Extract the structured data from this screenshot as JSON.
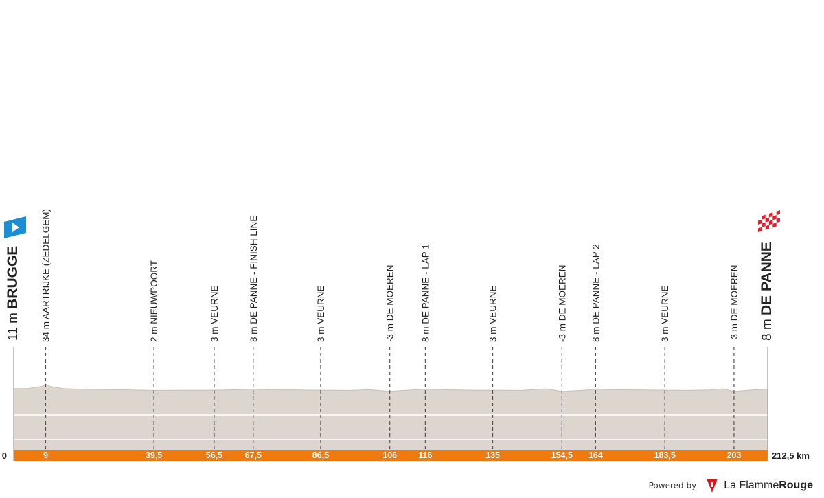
{
  "chart_data": {
    "type": "area",
    "title": "",
    "distance_unit": "km",
    "start_km_label": "0",
    "total_km": 212.5,
    "total_km_label": "212,5 km",
    "colors": {
      "profile_fill": "#ddd6ce",
      "profile_top": "#c8c0b7",
      "distance_bar": "#ee7a12",
      "start_flag": "#1b8fd3",
      "finish_flag": "#e3202a",
      "label_text": "#222222",
      "km_text": "#ffffff"
    },
    "elevation_profile": {
      "x": [
        0,
        4,
        8,
        9,
        10,
        14,
        20,
        27,
        40,
        50,
        56.5,
        62,
        67.5,
        72,
        80,
        86.5,
        95,
        100,
        106,
        110,
        116,
        122,
        130,
        135,
        143,
        150,
        154.5,
        160,
        164,
        170,
        178,
        183.5,
        190,
        196,
        200,
        203,
        208,
        212.5
      ],
      "y": [
        11,
        11,
        22,
        34,
        22,
        11,
        7,
        6,
        2,
        3,
        3,
        5,
        8,
        5,
        4,
        3,
        2,
        6,
        -3,
        2,
        8,
        5,
        3,
        3,
        2,
        10,
        -3,
        2,
        8,
        5,
        4,
        3,
        2,
        4,
        10,
        -3,
        4,
        8
      ]
    },
    "waypoints": [
      {
        "km": 0,
        "km_label": "",
        "alt_label": "11 m",
        "name": "BRUGGE",
        "kind": "start"
      },
      {
        "km": 9,
        "km_label": "9",
        "alt_label": "34 m",
        "name": "AARTRIJKE (ZEDELGEM)",
        "kind": "point"
      },
      {
        "km": 39.5,
        "km_label": "39,5",
        "alt_label": "2 m",
        "name": "NIEUWPOORT",
        "kind": "point"
      },
      {
        "km": 56.5,
        "km_label": "56,5",
        "alt_label": "3 m",
        "name": "VEURNE",
        "kind": "point"
      },
      {
        "km": 67.5,
        "km_label": "67,5",
        "alt_label": "8 m",
        "name": "DE PANNE - FINISH LINE",
        "kind": "point"
      },
      {
        "km": 86.5,
        "km_label": "86,5",
        "alt_label": "3 m",
        "name": "VEURNE",
        "kind": "point"
      },
      {
        "km": 106,
        "km_label": "106",
        "alt_label": "-3 m",
        "name": "DE MOEREN",
        "kind": "point"
      },
      {
        "km": 116,
        "km_label": "116",
        "alt_label": "8 m",
        "name": "DE PANNE - LAP 1",
        "kind": "point"
      },
      {
        "km": 135,
        "km_label": "135",
        "alt_label": "3 m",
        "name": "VEURNE",
        "kind": "point"
      },
      {
        "km": 154.5,
        "km_label": "154,5",
        "alt_label": "-3 m",
        "name": "DE MOEREN",
        "kind": "point"
      },
      {
        "km": 164,
        "km_label": "164",
        "alt_label": "8 m",
        "name": "DE PANNE - LAP 2",
        "kind": "point"
      },
      {
        "km": 183.5,
        "km_label": "183,5",
        "alt_label": "3 m",
        "name": "VEURNE",
        "kind": "point"
      },
      {
        "km": 203,
        "km_label": "203",
        "alt_label": "-3 m",
        "name": "DE MOEREN",
        "kind": "point"
      },
      {
        "km": 212.5,
        "km_label": "",
        "alt_label": "8 m",
        "name": "DE PANNE",
        "kind": "finish"
      }
    ]
  },
  "footer": {
    "powered_by": "Powered by",
    "brand_light": "La Flamme",
    "brand_bold": "Rouge"
  }
}
